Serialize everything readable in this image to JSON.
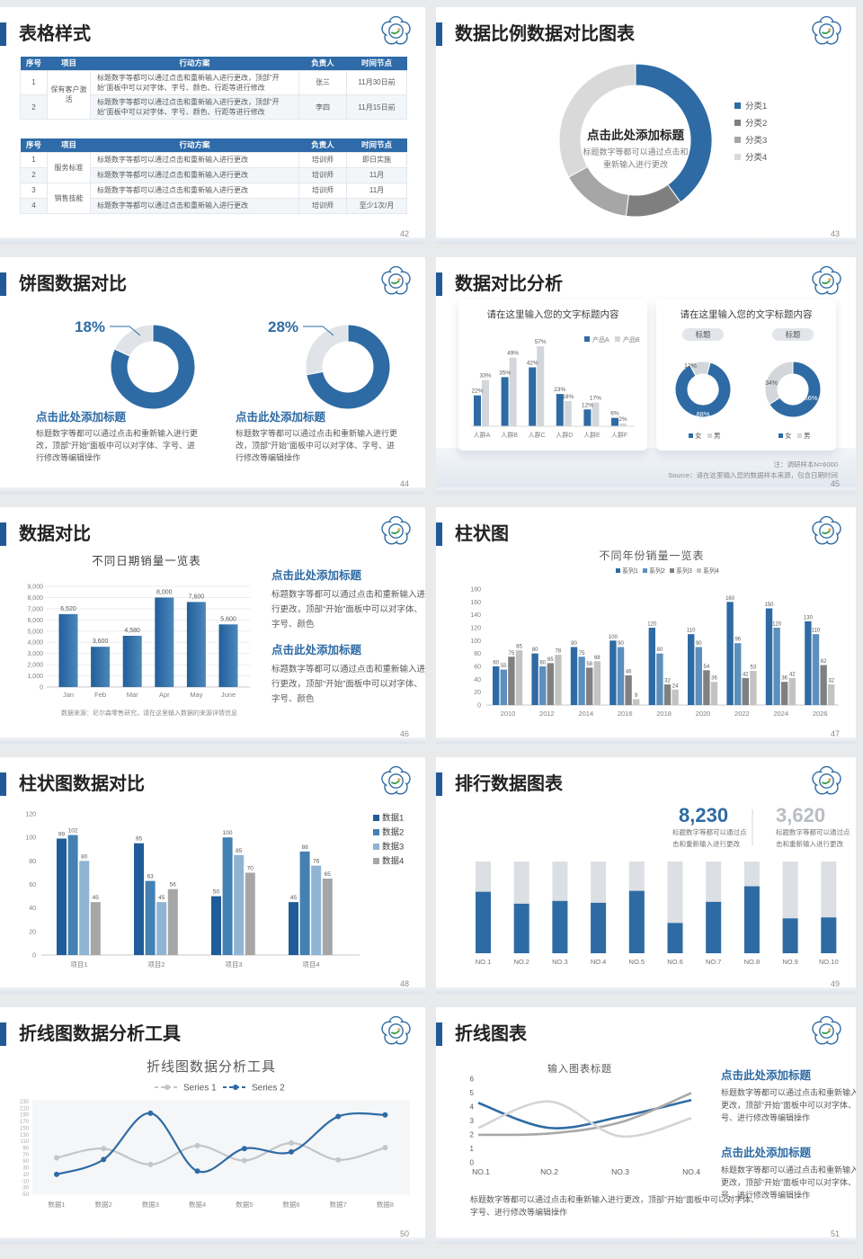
{
  "page": {
    "bg": "#e8eaec"
  },
  "colors": {
    "blue": "#2e6ba4",
    "accent_bar": "#215a96",
    "header_blue": "#2e6ba8",
    "text_dark": "#262626",
    "text_gray": "#595959"
  },
  "slides": [
    {
      "name": "slide-table-styles",
      "title": "表格样式",
      "page": "42",
      "type": "tables",
      "tables": [
        {
          "headers": [
            "序号",
            "项目",
            "行动方案",
            "负责人",
            "时间节点"
          ],
          "rows": [
            [
              "1",
              "保有客户激活",
              "标题数字等都可以通过点击和重新输入进行更改，顶部“开始”面板中可以对字体、字号、颜色、行距等进行修改",
              "张三",
              "11月30日前"
            ],
            [
              "2",
              "",
              "标题数字等都可以通过点击和重新输入进行更改，顶部“开始”面板中可以对字体、字号、颜色、行距等进行修改",
              "李四",
              "11月15日前"
            ]
          ]
        },
        {
          "headers": [
            "序号",
            "项目",
            "行动方案",
            "负责人",
            "时间节点"
          ],
          "rows": [
            [
              "1",
              "服务标准",
              "标题数字等都可以通过点击和重新输入进行更改",
              "培训师",
              "即日实施"
            ],
            [
              "2",
              "",
              "标题数字等都可以通过点击和重新输入进行更改",
              "培训师",
              "11月"
            ],
            [
              "3",
              "销售技能",
              "标题数字等都可以通过点击和重新输入进行更改",
              "培训师",
              "11月"
            ],
            [
              "4",
              "",
              "标题数字等都可以通过点击和重新输入进行更改",
              "培训师",
              "至少1次/月"
            ]
          ]
        }
      ]
    },
    {
      "name": "slide-donut-ratio",
      "title": "数据比例数据对比图表",
      "page": "43",
      "type": "donut-big",
      "chart_data": {
        "type": "pie",
        "legend": [
          "分类1",
          "分类2",
          "分类3",
          "分类4"
        ],
        "values": [
          40,
          12,
          15,
          33
        ],
        "colors": [
          "#2e6ba4",
          "#7f7f7f",
          "#a6a6a6",
          "#d9d9d9"
        ],
        "center_title": "点击此处添加标题",
        "center_sub": [
          "标题数字等都可以通过点击和",
          "重新输入进行更改"
        ]
      }
    },
    {
      "name": "slide-pie-compare",
      "title": "饼图数据对比",
      "page": "44",
      "type": "pie-compare",
      "chart_data": [
        {
          "type": "pie",
          "label": "18%",
          "values": [
            82,
            18
          ],
          "colors": [
            "#2e6ba4",
            "#e0e4e8"
          ],
          "heading": "点击此处添加标题",
          "body": [
            "标题数字等都可以通过点击和重新输入进行更",
            "改，顶部“开始”面板中可以对字体、字号、进",
            "行修改等编辑操作"
          ]
        },
        {
          "type": "pie",
          "label": "28%",
          "values": [
            72,
            28
          ],
          "colors": [
            "#2e6ba4",
            "#e0e4e8"
          ],
          "heading": "点击此处添加标题",
          "body": [
            "标题数字等都可以通过点击和重新输入进行更",
            "改，顶部“开始”面板中可以对字体、字号、进",
            "行修改等编辑操作"
          ]
        }
      ]
    },
    {
      "name": "slide-compare-analysis",
      "title": "数据对比分析",
      "page": "45",
      "type": "compare-analysis",
      "left_card": {
        "title": "请在这里输入您的文字标题内容",
        "chart_data": {
          "type": "bar",
          "categories": [
            "人群A",
            "人群B",
            "人群C",
            "人群D",
            "人群E",
            "人群F"
          ],
          "series": [
            {
              "name": "产品A",
              "color": "#2e6ba4",
              "values": [
                22,
                35,
                42,
                23,
                12,
                6
              ]
            },
            {
              "name": "产品B",
              "color": "#d3d7db",
              "values": [
                33,
                49,
                57,
                18,
                17,
                2
              ]
            }
          ],
          "unit": "%"
        }
      },
      "right_card": {
        "title": "请在这里输入您的文字标题内容",
        "pill": "标题",
        "donuts": [
          {
            "type": "pie",
            "values": [
              88,
              12
            ],
            "labels": [
              "88%",
              "12%"
            ],
            "colors": [
              "#2e6ba4",
              "#d3d7db"
            ],
            "legend": [
              "女",
              "男"
            ]
          },
          {
            "type": "pie",
            "values": [
              66,
              34
            ],
            "labels": [
              "66%",
              "34%"
            ],
            "colors": [
              "#2e6ba4",
              "#d3d7db"
            ],
            "legend": [
              "女",
              "男"
            ]
          }
        ]
      },
      "footnotes": [
        "注：调研样本N=6000",
        "Source：请在这里输入您的数据样本来源，包含日期时间"
      ]
    },
    {
      "name": "slide-data-compare",
      "title": "数据对比",
      "page": "46",
      "type": "bar-single",
      "chart_data": {
        "type": "bar",
        "title": "不同日期销量一览表",
        "categories": [
          "Jan",
          "Feb",
          "Mar",
          "Apr",
          "May",
          "June"
        ],
        "values": [
          6520,
          3600,
          4580,
          8000,
          7600,
          5600
        ],
        "labels": [
          "6,520",
          "3,600",
          "4,580",
          "8,000",
          "7,600",
          "5,600"
        ],
        "ylim": [
          0,
          9000
        ],
        "yticks": [
          "9,000",
          "8,000",
          "7,000",
          "6,000",
          "5,000",
          "4,000",
          "3,000",
          "2,000",
          "1,000",
          "0"
        ],
        "footnote": "数据来源：尼尔森零售研究，请在这里输入数据的来源详情信息"
      },
      "blocks": [
        {
          "heading": "点击此处添加标题",
          "body": [
            "标题数字等都可以通过点击和重新输入进",
            "行更改，顶部“开始”面板中可以对字体、",
            "字号、颜色"
          ]
        },
        {
          "heading": "点击此处添加标题",
          "body": [
            "标题数字等都可以通过点击和重新输入进",
            "行更改，顶部“开始”面板中可以对字体、",
            "字号、颜色"
          ]
        }
      ]
    },
    {
      "name": "slide-bar-chart",
      "title": "柱状图",
      "page": "47",
      "type": "bar-groups",
      "chart_data": {
        "type": "bar",
        "title": "不同年份销量一览表",
        "categories": [
          "2010",
          "2012",
          "2014",
          "2016",
          "2018",
          "2020",
          "2022",
          "2024",
          "2026"
        ],
        "series": [
          {
            "name": "系列1",
            "color": "#2e6ba4",
            "values": [
              60,
              80,
              90,
              100,
              120,
              110,
              160,
              150,
              130
            ]
          },
          {
            "name": "系列2",
            "color": "#5b8fbe",
            "values": [
              55,
              60,
              75,
              90,
              80,
              90,
              96,
              120,
              110
            ]
          },
          {
            "name": "系列3",
            "color": "#808080",
            "values": [
              75,
              65,
              58,
              46,
              32,
              54,
              42,
              36,
              62
            ]
          },
          {
            "name": "系列4",
            "color": "#c3c3c3",
            "values": [
              85,
              78,
              68,
              9,
              24,
              36,
              53,
              42,
              32
            ]
          }
        ],
        "ylim": [
          0,
          180
        ],
        "ytick_step": 20
      }
    },
    {
      "name": "slide-bar-compare",
      "title": "柱状图数据对比",
      "page": "48",
      "type": "bar-groups2",
      "chart_data": {
        "type": "bar",
        "categories": [
          "项目1",
          "项目2",
          "项目3",
          "项目4"
        ],
        "series": [
          {
            "name": "数据1",
            "color": "#1f5c99",
            "values": [
              99,
              95,
              50,
              45
            ]
          },
          {
            "name": "数据2",
            "color": "#4380b3",
            "values": [
              102,
              63,
              100,
              88
            ]
          },
          {
            "name": "数据3",
            "color": "#8fb4d4",
            "values": [
              80,
              45,
              85,
              76
            ]
          },
          {
            "name": "数据4",
            "color": "#a6a6a6",
            "values": [
              45,
              56,
              70,
              65
            ]
          }
        ],
        "ylim": [
          0,
          120
        ],
        "ytick_step": 20
      }
    },
    {
      "name": "slide-ranking",
      "title": "排行数据图表",
      "page": "49",
      "type": "ranking",
      "stats": [
        {
          "value": "8,230",
          "color": "#2e6ba4",
          "caption": [
            "标题数字等都可以通过点",
            "击和重新输入进行更改"
          ]
        },
        {
          "value": "3,620",
          "color": "#b9bdc2",
          "caption": [
            "标题数字等都可以通过点",
            "击和重新输入进行更改"
          ]
        }
      ],
      "chart_data": {
        "type": "bar",
        "categories": [
          "NO.1",
          "NO.2",
          "NO.3",
          "NO.4",
          "NO.5",
          "NO.6",
          "NO.7",
          "NO.8",
          "NO.9",
          "NO.10"
        ],
        "values": [
          0.67,
          0.54,
          0.57,
          0.55,
          0.68,
          0.33,
          0.56,
          0.73,
          0.38,
          0.39
        ],
        "ylim": [
          0,
          1
        ]
      }
    },
    {
      "name": "slide-line-analysis",
      "title": "折线图数据分析工具",
      "page": "50",
      "type": "line-tool",
      "chart_data": {
        "type": "line",
        "title": "折线图数据分析工具",
        "categories": [
          "数据1",
          "数据2",
          "数据3",
          "数据4",
          "数据5",
          "数据6",
          "数据7",
          "数据8"
        ],
        "series": [
          {
            "name": "Series 1",
            "color": "#c3c6c9",
            "values": [
              60,
              88,
              40,
              97,
              52,
              105,
              54,
              91
            ]
          },
          {
            "name": "Series 2",
            "color": "#2e6ba4",
            "values": [
              10,
              55,
              195,
              20,
              88,
              78,
              185,
              190
            ]
          }
        ],
        "ylim": [
          -50,
          230
        ],
        "ytick_step": 20
      }
    },
    {
      "name": "slide-line-chart",
      "title": "折线图表",
      "page": "51",
      "type": "line-right",
      "chart_data": {
        "type": "line",
        "title": "输入图表标题",
        "categories": [
          "NO.1",
          "NO.2",
          "NO.3",
          "NO.4"
        ],
        "series": [
          {
            "name": "line-blue",
            "color": "#2e6ba4",
            "values": [
              4.3,
              2.5,
              3.3,
              4.5
            ]
          },
          {
            "name": "line-dark-gray",
            "color": "#a9a9a9",
            "values": [
              2.0,
              2.1,
              2.9,
              5.0
            ]
          },
          {
            "name": "line-light-gray",
            "color": "#d2d5d8",
            "values": [
              2.5,
              4.4,
              1.9,
              3.2
            ]
          }
        ],
        "ylim": [
          0,
          6
        ],
        "ytick_step": 1
      },
      "caption": [
        "标题数字等都可以通过点击和重新输入进行更改，顶部“开始”面板中可以对字体、",
        "字号、进行修改等编辑操作"
      ],
      "blocks": [
        {
          "heading": "点击此处添加标题",
          "body": [
            "标题数字等都可以通过点击和重新输入进行",
            "更改，顶部“开始”面板中可以对字体、字",
            "号、进行修改等编辑操作"
          ]
        },
        {
          "heading": "点击此处添加标题",
          "body": [
            "标题数字等都可以通过点击和重新输入进行",
            "更改，顶部“开始”面板中可以对字体、字",
            "号、进行修改等编辑操作"
          ]
        }
      ]
    }
  ]
}
